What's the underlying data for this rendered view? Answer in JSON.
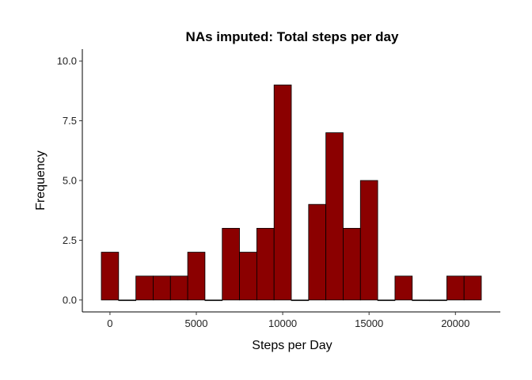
{
  "chart_data": {
    "type": "bar",
    "title": "NAs imputed: Total steps per day",
    "xlabel": "Steps per Day",
    "ylabel": "Frequency",
    "bin_width": 1000,
    "bin_centers": [
      0,
      1000,
      2000,
      3000,
      4000,
      5000,
      6000,
      7000,
      8000,
      9000,
      10000,
      11000,
      12000,
      13000,
      14000,
      15000,
      16000,
      17000,
      18000,
      19000,
      20000,
      21000
    ],
    "values": [
      2,
      0,
      1,
      1,
      1,
      2,
      0,
      3,
      2,
      3,
      9,
      0,
      4,
      7,
      3,
      5,
      0,
      1,
      0,
      0,
      1,
      1
    ],
    "xlim": [
      -1600,
      22600
    ],
    "ylim": [
      -0.5,
      10.5
    ],
    "x_ticks": [
      0,
      5000,
      10000,
      15000,
      20000
    ],
    "x_tick_labels": [
      "0",
      "5000",
      "10000",
      "15000",
      "20000"
    ],
    "y_ticks": [
      0,
      2.5,
      5,
      7.5,
      10
    ],
    "y_tick_labels": [
      "0.0",
      "2.5",
      "5.0",
      "7.5",
      "10.0"
    ],
    "bar_fill": "#8b0000",
    "bar_stroke": "#000000",
    "grid": false
  }
}
